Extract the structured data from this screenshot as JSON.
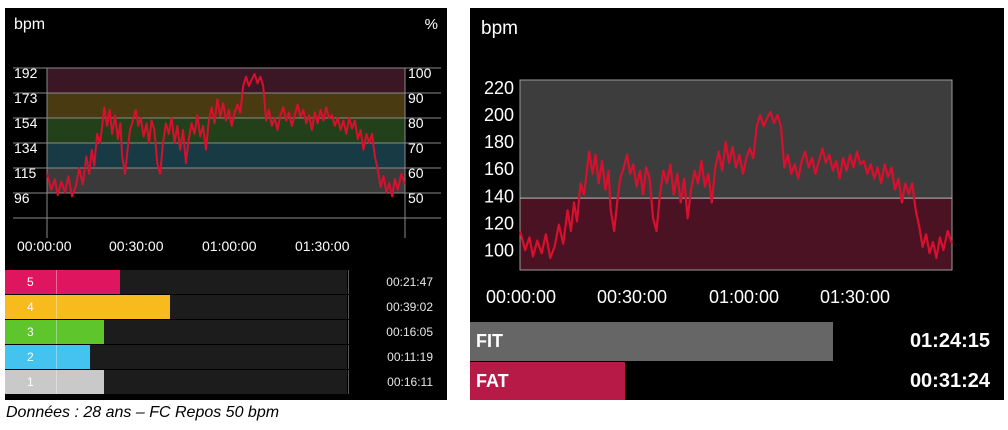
{
  "left_panel": {
    "unit_label": "bpm",
    "percent_label": "%",
    "bpm_ticks": [
      "192",
      "173",
      "154",
      "134",
      "115",
      "96"
    ],
    "percent_ticks": [
      "100",
      "90",
      "80",
      "70",
      "60",
      "50"
    ],
    "time_ticks": [
      "00:00:00",
      "00:30:00",
      "01:00:00",
      "01:30:00"
    ],
    "zone_colors": {
      "band_192_173": "#3b1625",
      "band_173_154": "#4a3a12",
      "band_154_134": "#22401a",
      "band_134_115": "#183a44",
      "band_115_96": "#3a3a3a"
    },
    "zones": [
      {
        "label": "5",
        "time": "00:21:47",
        "minutes": 21.78,
        "color": "#e01560"
      },
      {
        "label": "4",
        "time": "00:39:02",
        "minutes": 39.03,
        "color": "#f8bb1e"
      },
      {
        "label": "3",
        "time": "00:16:05",
        "minutes": 16.08,
        "color": "#5fc52d"
      },
      {
        "label": "2",
        "time": "00:11:19",
        "minutes": 11.32,
        "color": "#43c3ee"
      },
      {
        "label": "1",
        "time": "00:16:11",
        "minutes": 16.18,
        "color": "#c9c9c9"
      }
    ]
  },
  "right_panel": {
    "unit_label": "bpm",
    "bpm_ticks": [
      "220",
      "200",
      "180",
      "160",
      "140",
      "120",
      "100"
    ],
    "time_ticks": [
      "00:00:00",
      "00:30:00",
      "01:00:00",
      "01:30:00"
    ],
    "threshold_bpm": 138,
    "above_color": "#3d3d3d",
    "below_color": "#4a1223",
    "fit": {
      "label": "FIT",
      "time": "01:24:15",
      "fraction": 0.68,
      "color": "#666666"
    },
    "fat": {
      "label": "FAT",
      "time": "00:31:24",
      "fraction": 0.29,
      "color": "#b81a48"
    }
  },
  "line_color": "#d8102e",
  "caption": "Données : 28 ans – FC Repos 50 bpm"
}
